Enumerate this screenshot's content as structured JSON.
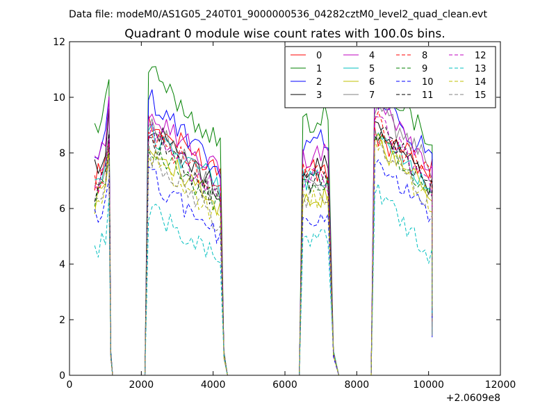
{
  "header": {
    "suptitle": "Data file: modeM0/AS1G05_240T01_9000000536_04282cztM0_level2_quad_clean.evt"
  },
  "chart_data": {
    "type": "line",
    "title": "Quadrant 0 module wise count rates with 100.0s bins.",
    "xlabel": "",
    "ylabel": "",
    "x_offset_label": "+2.0609e8",
    "xlim": [
      0,
      12000
    ],
    "ylim": [
      0,
      12
    ],
    "xticks": [
      0,
      2000,
      4000,
      6000,
      8000,
      10000,
      12000
    ],
    "yticks": [
      0,
      2,
      4,
      6,
      8,
      10,
      12
    ],
    "grid": false,
    "legend_position": "top-right",
    "legend_columns": 4,
    "segments": [
      {
        "start": 700,
        "end": 1100,
        "fall_x": 1200,
        "zero_end": 2100
      },
      {
        "start": 2200,
        "end": 4200,
        "fall_x": 4400,
        "zero_end": 6400
      },
      {
        "start": 6500,
        "end": 7200,
        "fall_x": 7500,
        "zero_end": 8400
      },
      {
        "start": 8500,
        "end": 10100,
        "fall_x": null,
        "zero_end": null
      }
    ],
    "step": 100,
    "series": [
      {
        "name": "0",
        "color": "#ff0000",
        "dash": "solid",
        "base": [
          7.0,
          9.0,
          7.5,
          8.6
        ],
        "slope": [
          0.8,
          -1.6,
          -0.4,
          -1.2
        ]
      },
      {
        "name": "1",
        "color": "#008000",
        "dash": "solid",
        "base": [
          8.7,
          11.0,
          9.0,
          11.0
        ],
        "slope": [
          1.2,
          -2.8,
          0.4,
          -2.6
        ]
      },
      {
        "name": "2",
        "color": "#0000ff",
        "dash": "solid",
        "base": [
          7.8,
          10.0,
          8.0,
          10.0
        ],
        "slope": [
          1.0,
          -2.8,
          0.6,
          -2.2
        ]
      },
      {
        "name": "3",
        "color": "#000000",
        "dash": "solid",
        "base": [
          7.5,
          9.0,
          7.4,
          9.2
        ],
        "slope": [
          0.8,
          -2.4,
          0.2,
          -2.4
        ]
      },
      {
        "name": "4",
        "color": "#bf00bf",
        "dash": "solid",
        "base": [
          8.0,
          9.6,
          7.8,
          10.2
        ],
        "slope": [
          0.6,
          -2.4,
          0.2,
          -2.8
        ]
      },
      {
        "name": "5",
        "color": "#00bfbf",
        "dash": "solid",
        "base": [
          6.8,
          8.8,
          7.0,
          8.8
        ],
        "slope": [
          0.8,
          -2.0,
          0.0,
          -2.0
        ]
      },
      {
        "name": "6",
        "color": "#bfbf00",
        "dash": "solid",
        "base": [
          6.2,
          8.4,
          6.6,
          8.4
        ],
        "slope": [
          1.0,
          -2.6,
          -0.2,
          -2.0
        ]
      },
      {
        "name": "7",
        "color": "#808080",
        "dash": "solid",
        "base": [
          6.6,
          9.2,
          7.0,
          9.8
        ],
        "slope": [
          0.8,
          -2.8,
          0.0,
          -2.4
        ]
      },
      {
        "name": "8",
        "color": "#ff0000",
        "dash": "dashed",
        "base": [
          6.8,
          8.8,
          7.2,
          9.2
        ],
        "slope": [
          0.6,
          -2.2,
          0.0,
          -2.2
        ]
      },
      {
        "name": "9",
        "color": "#008000",
        "dash": "dashed",
        "base": [
          6.4,
          8.4,
          6.8,
          8.6
        ],
        "slope": [
          0.8,
          -2.4,
          0.0,
          -2.2
        ]
      },
      {
        "name": "10",
        "color": "#0000ff",
        "dash": "dashed",
        "base": [
          5.6,
          7.2,
          5.4,
          7.6
        ],
        "slope": [
          0.6,
          -2.2,
          0.2,
          -2.0
        ]
      },
      {
        "name": "11",
        "color": "#000000",
        "dash": "dashed",
        "base": [
          6.6,
          8.6,
          7.0,
          9.0
        ],
        "slope": [
          0.8,
          -2.4,
          0.0,
          -2.2
        ]
      },
      {
        "name": "12",
        "color": "#bf00bf",
        "dash": "dashed",
        "base": [
          6.8,
          8.8,
          7.0,
          9.2
        ],
        "slope": [
          0.6,
          -2.4,
          0.0,
          -2.4
        ]
      },
      {
        "name": "13",
        "color": "#00bfbf",
        "dash": "dashed",
        "base": [
          4.3,
          6.0,
          4.8,
          6.8
        ],
        "slope": [
          0.8,
          -1.8,
          0.0,
          -2.6
        ]
      },
      {
        "name": "14",
        "color": "#bfbf00",
        "dash": "dashed",
        "base": [
          6.0,
          8.0,
          6.4,
          8.4
        ],
        "slope": [
          0.6,
          -2.4,
          0.0,
          -2.2
        ]
      },
      {
        "name": "15",
        "color": "#808080",
        "dash": "dashed",
        "base": [
          6.2,
          8.0,
          6.4,
          8.6
        ],
        "slope": [
          0.6,
          -2.6,
          0.0,
          -2.4
        ]
      }
    ]
  }
}
